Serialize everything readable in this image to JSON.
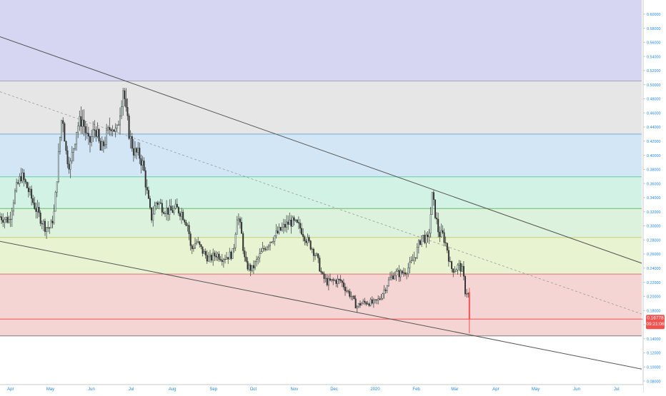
{
  "chart_data": {
    "type": "candlestick",
    "price_axis": {
      "ylim": [
        0.075,
        0.62
      ],
      "ticks": [
        "0.60000",
        "0.58000",
        "0.56000",
        "0.54000",
        "0.52000",
        "0.50000",
        "0.48000",
        "0.46000",
        "0.44000",
        "0.42000",
        "0.40000",
        "0.38000",
        "0.36000",
        "0.34000",
        "0.32000",
        "0.30000",
        "0.28000",
        "0.26000",
        "0.24000",
        "0.22000",
        "0.20000",
        "0.18000",
        "0.16000",
        "0.14000",
        "0.12000",
        "0.10000",
        "0.08000"
      ],
      "tick_values": [
        0.6,
        0.58,
        0.56,
        0.54,
        0.52,
        0.5,
        0.48,
        0.46,
        0.44,
        0.42,
        0.4,
        0.38,
        0.36,
        0.34,
        0.32,
        0.3,
        0.28,
        0.26,
        0.24,
        0.22,
        0.2,
        0.18,
        0.16,
        0.14,
        0.12,
        0.1,
        0.08
      ]
    },
    "time_axis": {
      "labels": [
        "Apr",
        "May",
        "Jun",
        "Jul",
        "Aug",
        "Sep",
        "Oct",
        "Nov",
        "Dec",
        "2020",
        "Feb",
        "Mar",
        "Apr",
        "May",
        "Jun",
        "Jul"
      ],
      "dates": [
        "2019-04-01",
        "2019-05-01",
        "2019-06-01",
        "2019-07-01",
        "2019-08-01",
        "2019-09-01",
        "2019-10-01",
        "2019-11-01",
        "2019-12-01",
        "2020-01-01",
        "2020-02-01",
        "2020-03-01",
        "2020-04-01",
        "2020-05-01",
        "2020-06-01",
        "2020-07-01"
      ],
      "range": [
        "2019-03-24",
        "2020-07-20"
      ]
    },
    "current_price": {
      "value": 0.16778,
      "label": "0.16778",
      "countdown": "09:21:06",
      "color": "#ef5350"
    },
    "fib_levels": [
      {
        "price": 0.62,
        "color": "#d6d6f2"
      },
      {
        "price": 0.5052,
        "color": "#e6e6e6",
        "line": "#9aa0b0"
      },
      {
        "price": 0.43,
        "color": "#d3e6f5",
        "line": "#5fa8d8"
      },
      {
        "price": 0.3694,
        "color": "#d3f2e6",
        "line": "#59c99a"
      },
      {
        "price": 0.3245,
        "color": "#dcf2dc",
        "line": "#66bb6a"
      },
      {
        "price": 0.2835,
        "color": "#e8f3d2",
        "line": "#c9c96a"
      },
      {
        "price": 0.2316,
        "color": "#f5d4d4",
        "line": "#e57373"
      },
      {
        "price": 0.1678,
        "color": "#f5d4d4",
        "line": "#ef5350"
      },
      {
        "price": 0.144,
        "color": "#ffffff",
        "line": "#808080"
      }
    ],
    "trendlines": [
      {
        "name": "upper",
        "points": [
          [
            "2019-03-24",
            0.568
          ],
          [
            "2020-07-20",
            0.247
          ]
        ],
        "style": "solid",
        "color": "#555555"
      },
      {
        "name": "lower",
        "points": [
          [
            "2019-03-24",
            0.278
          ],
          [
            "2020-07-20",
            0.097
          ]
        ],
        "style": "solid",
        "color": "#555555"
      },
      {
        "name": "median",
        "points": [
          [
            "2019-03-24",
            0.49
          ],
          [
            "2020-07-20",
            0.175
          ]
        ],
        "style": "dashed",
        "color": "#999999"
      }
    ],
    "price_path": [
      [
        "2019-03-24",
        0.313
      ],
      [
        "2019-03-31",
        0.308
      ],
      [
        "2019-04-04",
        0.345
      ],
      [
        "2019-04-09",
        0.372
      ],
      [
        "2019-04-14",
        0.352
      ],
      [
        "2019-04-18",
        0.333
      ],
      [
        "2019-04-22",
        0.316
      ],
      [
        "2019-04-27",
        0.299
      ],
      [
        "2019-05-01",
        0.297
      ],
      [
        "2019-05-04",
        0.32
      ],
      [
        "2019-05-08",
        0.42
      ],
      [
        "2019-05-10",
        0.462
      ],
      [
        "2019-05-13",
        0.4
      ],
      [
        "2019-05-16",
        0.385
      ],
      [
        "2019-05-21",
        0.44
      ],
      [
        "2019-05-25",
        0.452
      ],
      [
        "2019-05-30",
        0.415
      ],
      [
        "2019-06-04",
        0.44
      ],
      [
        "2019-06-08",
        0.405
      ],
      [
        "2019-06-12",
        0.425
      ],
      [
        "2019-06-16",
        0.445
      ],
      [
        "2019-06-20",
        0.43
      ],
      [
        "2019-06-25",
        0.498
      ],
      [
        "2019-06-27",
        0.46
      ],
      [
        "2019-06-30",
        0.425
      ],
      [
        "2019-07-03",
        0.405
      ],
      [
        "2019-07-07",
        0.4
      ],
      [
        "2019-07-10",
        0.385
      ],
      [
        "2019-07-13",
        0.345
      ],
      [
        "2019-07-16",
        0.31
      ],
      [
        "2019-07-20",
        0.335
      ],
      [
        "2019-07-25",
        0.326
      ],
      [
        "2019-07-30",
        0.32
      ],
      [
        "2019-08-04",
        0.324
      ],
      [
        "2019-08-08",
        0.319
      ],
      [
        "2019-08-13",
        0.3
      ],
      [
        "2019-08-15",
        0.265
      ],
      [
        "2019-08-19",
        0.278
      ],
      [
        "2019-08-24",
        0.263
      ],
      [
        "2019-08-29",
        0.252
      ],
      [
        "2019-09-03",
        0.26
      ],
      [
        "2019-09-08",
        0.255
      ],
      [
        "2019-09-13",
        0.258
      ],
      [
        "2019-09-16",
        0.262
      ],
      [
        "2019-09-19",
        0.318
      ],
      [
        "2019-09-22",
        0.29
      ],
      [
        "2019-09-25",
        0.245
      ],
      [
        "2019-09-30",
        0.238
      ],
      [
        "2019-10-05",
        0.255
      ],
      [
        "2019-10-10",
        0.27
      ],
      [
        "2019-10-15",
        0.282
      ],
      [
        "2019-10-20",
        0.291
      ],
      [
        "2019-10-25",
        0.3
      ],
      [
        "2019-10-29",
        0.306
      ],
      [
        "2019-11-02",
        0.302
      ],
      [
        "2019-11-06",
        0.296
      ],
      [
        "2019-11-10",
        0.281
      ],
      [
        "2019-11-14",
        0.27
      ],
      [
        "2019-11-18",
        0.255
      ],
      [
        "2019-11-22",
        0.228
      ],
      [
        "2019-11-26",
        0.22
      ],
      [
        "2019-12-01",
        0.222
      ],
      [
        "2019-12-06",
        0.222
      ],
      [
        "2019-12-10",
        0.21
      ],
      [
        "2019-12-14",
        0.2
      ],
      [
        "2019-12-18",
        0.185
      ],
      [
        "2019-12-21",
        0.19
      ],
      [
        "2019-12-26",
        0.192
      ],
      [
        "2019-12-31",
        0.19
      ],
      [
        "2020-01-04",
        0.196
      ],
      [
        "2020-01-08",
        0.21
      ],
      [
        "2020-01-12",
        0.225
      ],
      [
        "2020-01-16",
        0.233
      ],
      [
        "2020-01-20",
        0.232
      ],
      [
        "2020-01-24",
        0.236
      ],
      [
        "2020-01-28",
        0.246
      ],
      [
        "2020-02-01",
        0.262
      ],
      [
        "2020-02-05",
        0.286
      ],
      [
        "2020-02-10",
        0.278
      ],
      [
        "2020-02-13",
        0.342
      ],
      [
        "2020-02-15",
        0.32
      ],
      [
        "2020-02-18",
        0.288
      ],
      [
        "2020-02-21",
        0.287
      ],
      [
        "2020-02-24",
        0.27
      ],
      [
        "2020-02-27",
        0.24
      ],
      [
        "2020-03-01",
        0.238
      ],
      [
        "2020-03-04",
        0.244
      ],
      [
        "2020-03-07",
        0.236
      ],
      [
        "2020-03-09",
        0.205
      ],
      [
        "2020-03-11",
        0.208
      ],
      [
        "2020-03-12",
        0.168
      ]
    ]
  },
  "colors": {
    "up": "#26a69a",
    "down": "#ef5350",
    "candle_body": "#333333",
    "axis_text": "#1e88e5",
    "axis_line": "#c8c8c8",
    "background": "#ffffff"
  }
}
